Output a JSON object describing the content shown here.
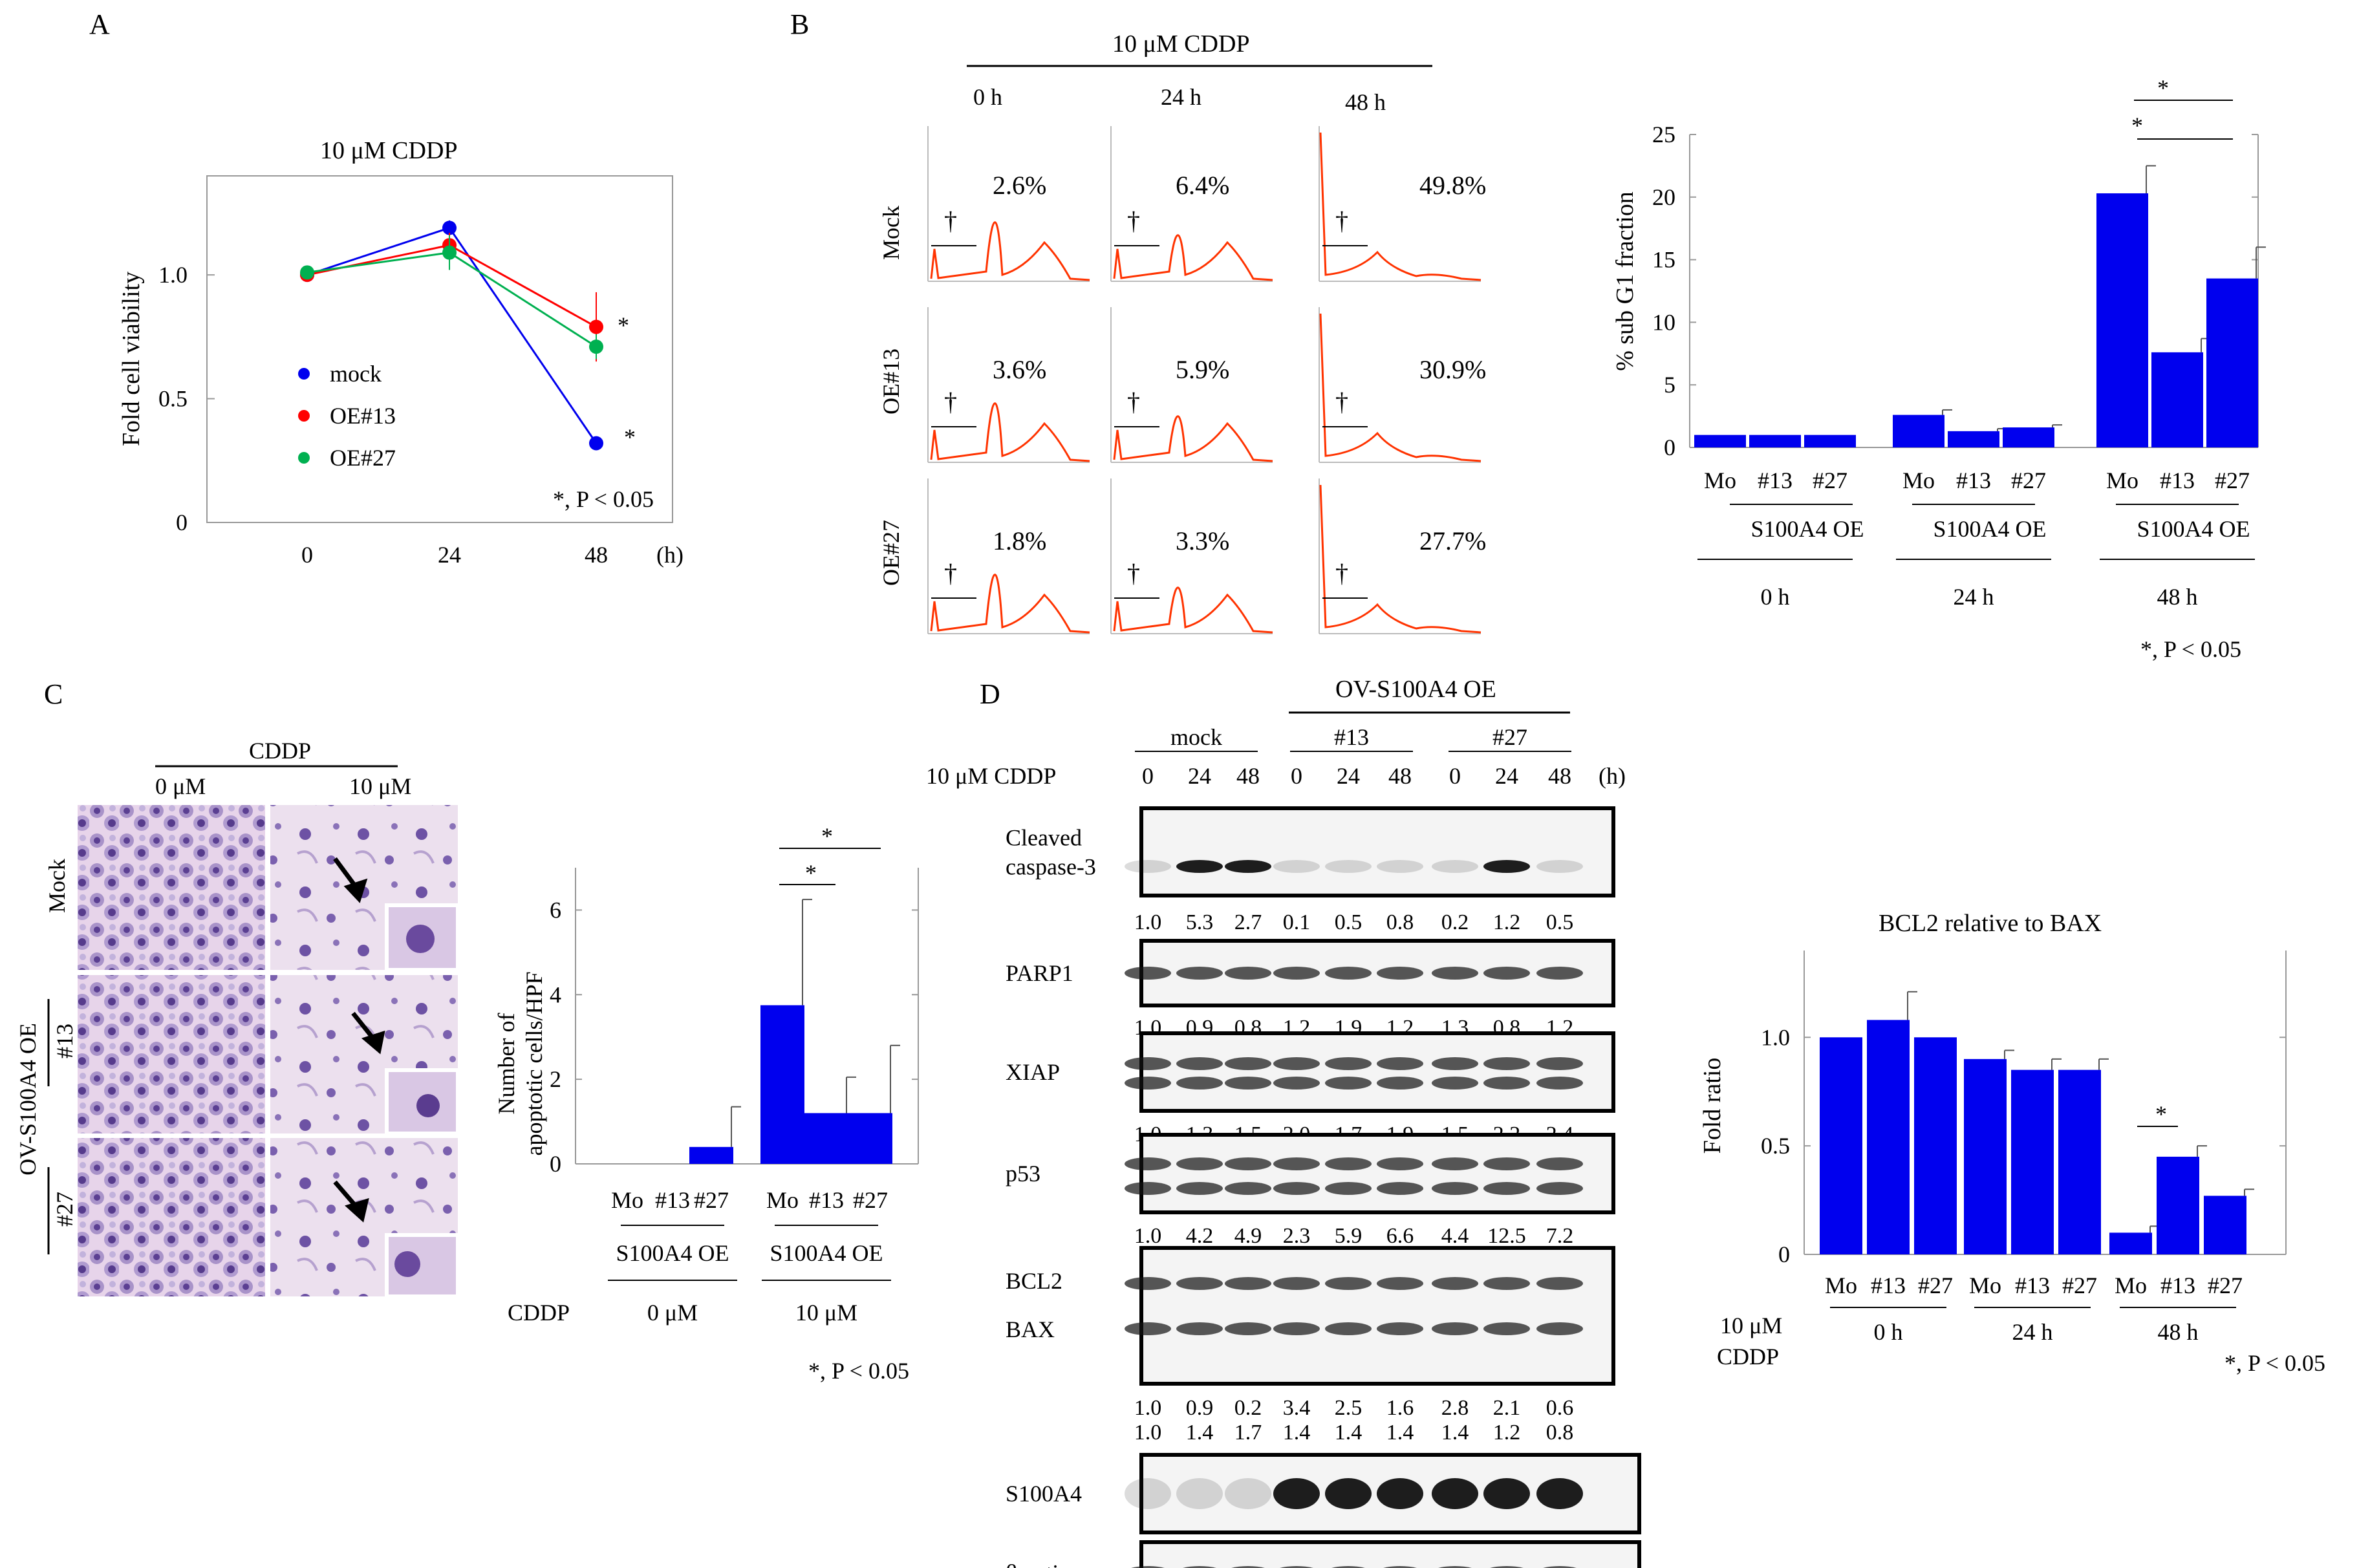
{
  "panels": {
    "A": {
      "letter": "A",
      "title": "10 μM CDDP",
      "ylabel": "Fold cell viability",
      "xunit": "(h)",
      "yticks": [
        "0",
        "0.5",
        "1.0"
      ],
      "xticks": [
        "0",
        "24",
        "48"
      ],
      "significance": "*, P < 0.05",
      "star": "*"
    },
    "B": {
      "letter": "B",
      "treatment": "10 μM CDDP",
      "times": [
        "0 h",
        "24 h",
        "48 h"
      ],
      "rows": [
        "Mock",
        "OE#13",
        "OE#27"
      ],
      "percents": [
        [
          "2.6%",
          "6.4%",
          "49.8%"
        ],
        [
          "3.6%",
          "5.9%",
          "30.9%"
        ],
        [
          "1.8%",
          "3.3%",
          "27.7%"
        ]
      ],
      "dagger": "†",
      "bar_ylabel": "% sub G1 fraction",
      "bar_yticks": [
        "0",
        "5",
        "10",
        "15",
        "20",
        "25"
      ],
      "bar_categories": [
        "Mo",
        "#13",
        "#27",
        "Mo",
        "#13",
        "#27",
        "Mo",
        "#13",
        "#27"
      ],
      "group_label": "S100A4 OE",
      "group_times": [
        "0 h",
        "24 h",
        "48 h"
      ],
      "star": "*",
      "significance": "*, P < 0.05"
    },
    "C": {
      "letter": "C",
      "treatment": "CDDP",
      "doses": [
        "0 μM",
        "10 μM"
      ],
      "row_mock": "Mock",
      "row_oe": "OV-S100A4 OE",
      "row_13": "#13",
      "row_27": "#27",
      "bar_ylabel_1": "Number of",
      "bar_ylabel_2": "apoptotic cells/HPF",
      "bar_yticks": [
        "0",
        "2",
        "4",
        "6"
      ],
      "bar_categories": [
        "Mo",
        "#13",
        "#27",
        "Mo",
        "#13",
        "#27"
      ],
      "group_label": "S100A4 OE",
      "cddp_label": "CDDP",
      "group_doses": [
        "0 μM",
        "10 μM"
      ],
      "star": "*",
      "significance": "*, P < 0.05"
    },
    "D": {
      "letter": "D",
      "header": "OV-S100A4 OE",
      "groups": [
        "mock",
        "#13",
        "#27"
      ],
      "treatment": "10 μM CDDP",
      "lane_times": [
        "0",
        "24",
        "48",
        "0",
        "24",
        "48",
        "0",
        "24",
        "48"
      ],
      "unit": "(h)",
      "blots": [
        {
          "label": "Cleaved",
          "label2": "caspase-3",
          "values": [
            "1.0",
            "5.3",
            "2.7",
            "0.1",
            "0.5",
            "0.8",
            "0.2",
            "1.2",
            "0.5"
          ]
        },
        {
          "label": "PARP1",
          "values": [
            "1.0",
            "0.9",
            "0.8",
            "1.2",
            "1.9",
            "1.2",
            "1.3",
            "0.8",
            "1.2"
          ]
        },
        {
          "label": "XIAP",
          "values": [
            "1.0",
            "1.3",
            "1.5",
            "2.0",
            "1.7",
            "1.9",
            "1.5",
            "2.2",
            "2.4"
          ]
        },
        {
          "label": "p53",
          "values": [
            "1.0",
            "4.2",
            "4.9",
            "2.3",
            "5.9",
            "6.6",
            "4.4",
            "12.5",
            "7.2"
          ]
        },
        {
          "label": "BCL2",
          "label2": "BAX",
          "values": [
            "1.0",
            "0.9",
            "0.2",
            "3.4",
            "2.5",
            "1.6",
            "2.8",
            "2.1",
            "0.6"
          ],
          "values2": [
            "1.0",
            "1.4",
            "1.7",
            "1.4",
            "1.4",
            "1.4",
            "1.4",
            "1.2",
            "0.8"
          ]
        },
        {
          "label": "S100A4"
        },
        {
          "label": "β-actin"
        }
      ],
      "bar_title": "BCL2 relative to BAX",
      "bar_ylabel": "Fold ratio",
      "bar_yticks": [
        "0",
        "0.5",
        "1.0"
      ],
      "bar_categories": [
        "Mo",
        "#13",
        "#27",
        "Mo",
        "#13",
        "#27",
        "Mo",
        "#13",
        "#27"
      ],
      "dose_1": "10 μM",
      "dose_2": "CDDP",
      "group_times": [
        "0 h",
        "24 h",
        "48 h"
      ],
      "star": "*",
      "significance": "*, P < 0.05"
    }
  },
  "chart_data": [
    {
      "type": "line",
      "panel": "A",
      "title": "10 μM CDDP",
      "ylabel": "Fold cell viability",
      "xlabel": "(h)",
      "x": [
        0,
        24,
        48
      ],
      "ylim": [
        0,
        1.4
      ],
      "series": [
        {
          "name": "mock",
          "color": "#0000ee",
          "values": [
            1.0,
            1.19,
            0.32
          ],
          "errors": [
            0.0,
            0.03,
            0.02
          ]
        },
        {
          "name": "OE#13",
          "color": "#ff0000",
          "values": [
            1.0,
            1.12,
            0.79
          ],
          "errors": [
            0.0,
            0.05,
            0.14
          ]
        },
        {
          "name": "OE#27",
          "color": "#00b050",
          "values": [
            1.01,
            1.09,
            0.71
          ],
          "errors": [
            0.0,
            0.07,
            0.05
          ]
        }
      ]
    },
    {
      "type": "bar",
      "panel": "B",
      "ylabel": "% sub G1 fraction",
      "ylim": [
        0,
        25
      ],
      "categories": [
        "Mo",
        "#13",
        "#27",
        "Mo",
        "#13",
        "#27",
        "Mo",
        "#13",
        "#27"
      ],
      "groups": [
        "0 h",
        "24 h",
        "48 h"
      ],
      "values": [
        1.0,
        1.0,
        1.0,
        2.6,
        1.3,
        1.6,
        20.3,
        7.6,
        13.5
      ],
      "errors": [
        0.0,
        0.0,
        0.0,
        0.4,
        0.2,
        0.2,
        2.2,
        1.1,
        2.5
      ],
      "color": "#0000ee"
    },
    {
      "type": "bar",
      "panel": "C",
      "ylabel": "Number of apoptotic cells/HPF",
      "ylim": [
        0,
        7
      ],
      "categories": [
        "Mo",
        "#13",
        "#27",
        "Mo",
        "#13",
        "#27"
      ],
      "groups": [
        "0 μM",
        "10 μM"
      ],
      "values": [
        0,
        0,
        0.4,
        3.75,
        1.2,
        1.2
      ],
      "errors": [
        0,
        0,
        0.95,
        2.5,
        0.85,
        1.6
      ],
      "color": "#0000ee"
    },
    {
      "type": "bar",
      "panel": "D",
      "title": "BCL2 relative to BAX",
      "ylabel": "Fold ratio",
      "ylim": [
        0,
        1.4
      ],
      "categories": [
        "Mo",
        "#13",
        "#27",
        "Mo",
        "#13",
        "#27",
        "Mo",
        "#13",
        "#27"
      ],
      "groups": [
        "0 h",
        "24 h",
        "48 h"
      ],
      "values": [
        1.0,
        1.08,
        1.0,
        0.9,
        0.85,
        0.85,
        0.1,
        0.45,
        0.27
      ],
      "errors": [
        0.0,
        0.13,
        0.0,
        0.04,
        0.05,
        0.05,
        0.03,
        0.05,
        0.03
      ],
      "color": "#0000ee"
    }
  ]
}
